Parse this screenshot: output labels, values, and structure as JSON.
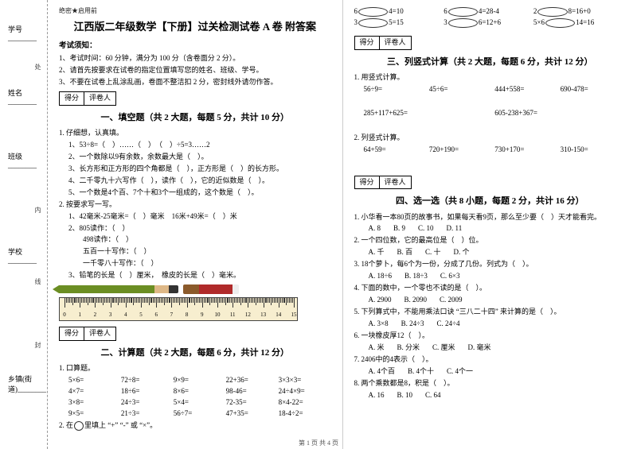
{
  "binding": {
    "secret": "绝密★启用前",
    "fields": [
      "学号________",
      "姓名________",
      "班级________",
      "学校________",
      "乡镇(街道)________"
    ],
    "marks": [
      "处",
      "内",
      "线",
      "封"
    ]
  },
  "title": "江西版二年级数学【下册】过关检测试卷 A 卷 附答案",
  "noticeHead": "考试须知：",
  "notices": [
    "1、考试时间：60 分钟，满分为 100 分（含卷面分 2 分）。",
    "2、请首先按要求在试卷的指定位置填写您的姓名、班级、学号。",
    "3、不要在试卷上乱涂乱画，卷面不整洁扣 2 分，密封线外请勿作答。"
  ],
  "scoreBox": {
    "c1": "得分",
    "c2": "评卷人"
  },
  "sec1": {
    "title": "一、填空题（共 2 大题，每题 5 分，共计 10 分）",
    "q1lead": "1. 仔细想，认真填。",
    "q1": [
      "1、53÷8=（　）……（　）　（　）÷5=3……2",
      "2、一个数除以9有余数，余数最大是（　）。",
      "3、长方形和正方形的四个角都是（　），正方形是（　）的长方形。",
      "4、二千零九十六写作（　），读作（　），它的近似数是（　）。",
      "5、一个数是4个百、7个十和3个一组成的，这个数是（　）。"
    ],
    "q2lead": "2. 按要求写一写。",
    "q2": [
      "1、42毫米-25毫米=（　）毫米　16米+49米=（　）米",
      "2、805读作：（　）",
      "　　498读作：（　）",
      "　　五百一十写作：（　）",
      "　　一千零八十写作：（　）",
      "3、铅笔的长是（　）厘米，　橡皮的长是（　）毫米。"
    ]
  },
  "ruler": {
    "min": 0,
    "max": 15
  },
  "sec2": {
    "title": "二、计算题（共 2 大题，每题 6 分，共计 12 分）",
    "q1lead": "1. 口算题。",
    "rows": [
      [
        "5×6=",
        "72÷8=",
        "9×9=",
        "22+36=",
        "3×3×3="
      ],
      [
        "4×7=",
        "18÷6=",
        "8×6=",
        "98-46=",
        "24÷4×9="
      ],
      [
        "3×8=",
        "24÷3=",
        "5×4=",
        "72-35=",
        "8×4-22="
      ],
      [
        "9×5=",
        "21÷3=",
        "56÷7=",
        "47+35=",
        "18-4÷2="
      ]
    ],
    "q2lead": "2. 在",
    "q2tail": "里填上 “+” “-” 或 “×”。"
  },
  "circEqs": [
    [
      "6",
      "4=10",
      "6",
      "4=28-4",
      "2",
      "8=16+0"
    ],
    [
      "3",
      "5=15",
      "3",
      "6=12+6",
      "5×6",
      "14=16"
    ]
  ],
  "sec3": {
    "title": "三、列竖式计算（共 2 大题，每题 6 分，共计 12 分）",
    "q1lead": "1. 用竖式计算。",
    "rows1": [
      "56÷9=",
      "45÷6=",
      "444+558=",
      "690-478="
    ],
    "rows1b": [
      "285+117+625=",
      "605-238+367="
    ],
    "q2lead": "2. 列竖式计算。",
    "rows2": [
      "64+59=",
      "720+190=",
      "730+170=",
      "310-150="
    ]
  },
  "sec4": {
    "title": "四、选一选（共 8 小题，每题 2 分，共计 16 分）",
    "items": [
      {
        "q": "1. 小华看一本80页的故事书，如果每天看9页，那么至少要（　）天才能看完。",
        "opts": [
          "A. 8",
          "B. 9",
          "C. 10",
          "D. 11"
        ]
      },
      {
        "q": "2. 一个四位数，它的最高位是（　）位。",
        "opts": [
          "A. 千",
          "B. 百",
          "C. 十",
          "D. 个"
        ]
      },
      {
        "q": "3. 18个萝卜，每6个为一份，分成了几份。列式为（　）。",
        "opts": [
          "A. 18÷6",
          "B. 18÷3",
          "C. 6×3"
        ]
      },
      {
        "q": "4. 下面的数中，一个零也不读的是（　）。",
        "opts": [
          "A. 2900",
          "B. 2090",
          "C. 2009"
        ]
      },
      {
        "q": "5. 下列算式中，不能用乘法口诀 “三八二十四” 来计算的是（　）。",
        "opts": [
          "A. 3×8",
          "B. 24÷3",
          "C. 24÷4"
        ]
      },
      {
        "q": "6. 一块橡皮厚12（　）。",
        "opts": [
          "A. 米",
          "B. 分米",
          "C. 厘米",
          "D. 毫米"
        ]
      },
      {
        "q": "7. 2406中的4表示（　）。",
        "opts": [
          "A. 4个百",
          "B. 4个十",
          "C. 4个一"
        ]
      },
      {
        "q": "8. 两个乘数都是8，积是（　）。",
        "opts": [
          "A. 16",
          "B. 10",
          "C. 64"
        ]
      }
    ]
  },
  "footer": "第 1 页 共 4 页"
}
